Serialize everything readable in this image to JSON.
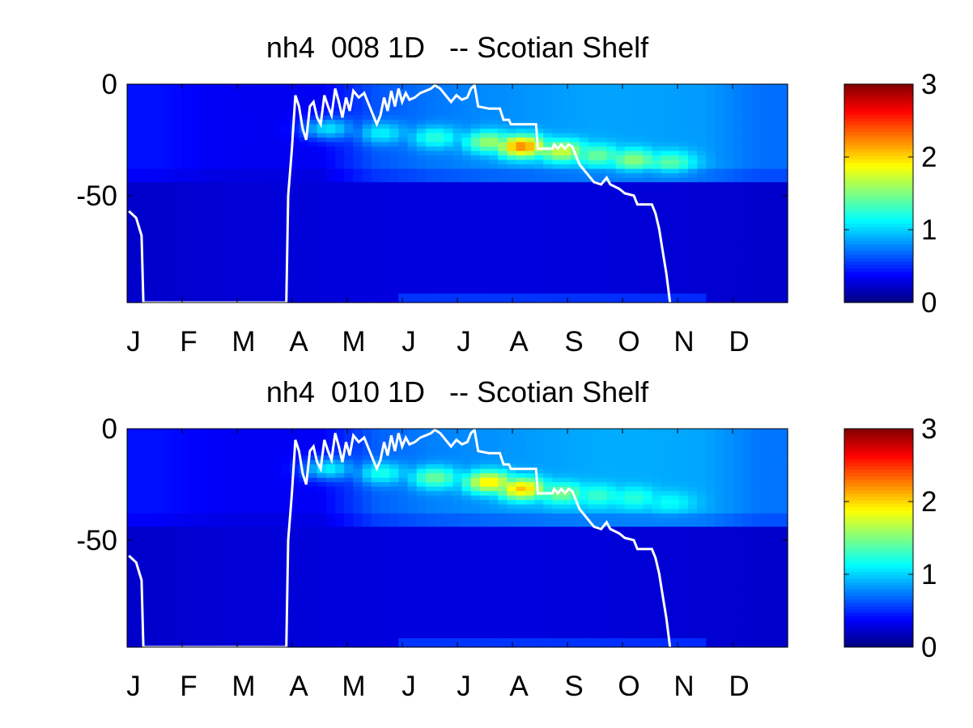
{
  "chart_data": [
    {
      "type": "heatmap",
      "title": "nh4  008 1D   -- Scotian Shelf",
      "xlabel": "",
      "ylabel": "",
      "x_tick_labels": [
        "J",
        "F",
        "M",
        "A",
        "M",
        "J",
        "J",
        "A",
        "S",
        "O",
        "N",
        "D"
      ],
      "y_tick_labels": [
        "0",
        "-50"
      ],
      "y_ticks": [
        0,
        -50
      ],
      "ylim": [
        -98,
        0
      ],
      "colorbar": {
        "colormap": "jet",
        "range": [
          0,
          3
        ],
        "tick_labels": [
          "0",
          "1",
          "2",
          "3"
        ]
      },
      "surface_layer": {
        "months": [
          1,
          2,
          3,
          4,
          5,
          6,
          7,
          8,
          9,
          10,
          11,
          12
        ],
        "values": [
          0.42,
          0.35,
          0.33,
          0.34,
          0.62,
          0.72,
          0.78,
          0.82,
          0.86,
          0.85,
          0.83,
          0.7
        ]
      },
      "subsurface_maximum": {
        "points": [
          {
            "day": 110,
            "depth": -20,
            "value": 1.05
          },
          {
            "day": 140,
            "depth": -22,
            "value": 1.1
          },
          {
            "day": 170,
            "depth": -24,
            "value": 1.25
          },
          {
            "day": 200,
            "depth": -26,
            "value": 1.6
          },
          {
            "day": 218,
            "depth": -28,
            "value": 2.25
          },
          {
            "day": 240,
            "depth": -30,
            "value": 1.75
          },
          {
            "day": 260,
            "depth": -32,
            "value": 1.45
          },
          {
            "day": 280,
            "depth": -34,
            "value": 1.55
          },
          {
            "day": 300,
            "depth": -35,
            "value": 1.4
          },
          {
            "day": 318,
            "depth": -38,
            "value": 0.85
          }
        ]
      },
      "mixed_layer_depth_line": {
        "color": "#ffffff",
        "points": [
          [
            1,
            -57
          ],
          [
            5,
            -60
          ],
          [
            8,
            -68
          ],
          [
            9,
            -98
          ],
          [
            88,
            -98
          ],
          [
            89,
            -50
          ],
          [
            91,
            -30
          ],
          [
            93,
            -5
          ],
          [
            95,
            -10
          ],
          [
            97,
            -20
          ],
          [
            99,
            -25
          ],
          [
            101,
            -10
          ],
          [
            103,
            -8
          ],
          [
            105,
            -15
          ],
          [
            107,
            -18
          ],
          [
            109,
            -5
          ],
          [
            111,
            -10
          ],
          [
            113,
            -14
          ],
          [
            115,
            -2
          ],
          [
            117,
            -8
          ],
          [
            119,
            -15
          ],
          [
            121,
            -6
          ],
          [
            123,
            -12
          ],
          [
            125,
            -3
          ],
          [
            128,
            -6
          ],
          [
            131,
            -4
          ],
          [
            134,
            -10
          ],
          [
            136,
            -14
          ],
          [
            138,
            -18
          ],
          [
            140,
            -14
          ],
          [
            142,
            -6
          ],
          [
            144,
            -12
          ],
          [
            146,
            -3
          ],
          [
            148,
            -10
          ],
          [
            150,
            -2
          ],
          [
            152,
            -8
          ],
          [
            154,
            -4
          ],
          [
            156,
            -7
          ],
          [
            159,
            -6
          ],
          [
            162,
            -4
          ],
          [
            165,
            -3
          ],
          [
            168,
            -2
          ],
          [
            170,
            -0.5
          ],
          [
            173,
            -2
          ],
          [
            176,
            -5
          ],
          [
            179,
            -8
          ],
          [
            182,
            -5
          ],
          [
            185,
            -7
          ],
          [
            188,
            -6
          ],
          [
            190,
            -2
          ],
          [
            192,
            -0.5
          ],
          [
            194,
            -10
          ],
          [
            200,
            -11
          ],
          [
            206,
            -11
          ],
          [
            208,
            -16
          ],
          [
            211,
            -16
          ],
          [
            212,
            -18
          ],
          [
            226,
            -18
          ],
          [
            227,
            -29
          ],
          [
            235,
            -29
          ],
          [
            236,
            -27
          ],
          [
            238,
            -29
          ],
          [
            240,
            -27
          ],
          [
            242,
            -29
          ],
          [
            244,
            -27
          ],
          [
            246,
            -28
          ],
          [
            248,
            -32
          ],
          [
            250,
            -36
          ],
          [
            254,
            -40
          ],
          [
            258,
            -44
          ],
          [
            262,
            -45
          ],
          [
            265,
            -42
          ],
          [
            267,
            -45
          ],
          [
            272,
            -47
          ],
          [
            275,
            -49
          ],
          [
            280,
            -50
          ],
          [
            282,
            -54
          ],
          [
            290,
            -54
          ],
          [
            292,
            -58
          ],
          [
            294,
            -65
          ],
          [
            296,
            -75
          ],
          [
            298,
            -85
          ],
          [
            300,
            -98
          ]
        ]
      }
    },
    {
      "type": "heatmap",
      "title": "nh4  010 1D   -- Scotian Shelf",
      "xlabel": "",
      "ylabel": "",
      "x_tick_labels": [
        "J",
        "F",
        "M",
        "A",
        "M",
        "J",
        "J",
        "A",
        "S",
        "O",
        "N",
        "D"
      ],
      "y_tick_labels": [
        "0",
        "-50"
      ],
      "y_ticks": [
        0,
        -50
      ],
      "ylim": [
        -98,
        0
      ],
      "colorbar": {
        "colormap": "jet",
        "range": [
          0,
          3
        ],
        "tick_labels": [
          "0",
          "1",
          "2",
          "3"
        ]
      },
      "surface_layer": {
        "months": [
          1,
          2,
          3,
          4,
          5,
          6,
          7,
          8,
          9,
          10,
          11,
          12
        ],
        "values": [
          0.42,
          0.36,
          0.34,
          0.35,
          0.65,
          0.75,
          0.8,
          0.84,
          0.88,
          0.88,
          0.86,
          0.72
        ]
      },
      "subsurface_maximum": {
        "points": [
          {
            "day": 110,
            "depth": -18,
            "value": 1.1
          },
          {
            "day": 140,
            "depth": -20,
            "value": 1.2
          },
          {
            "day": 170,
            "depth": -22,
            "value": 1.45
          },
          {
            "day": 200,
            "depth": -24,
            "value": 1.95
          },
          {
            "day": 218,
            "depth": -27,
            "value": 2.05
          },
          {
            "day": 240,
            "depth": -29,
            "value": 1.5
          },
          {
            "day": 260,
            "depth": -30,
            "value": 1.3
          },
          {
            "day": 280,
            "depth": -31,
            "value": 1.25
          },
          {
            "day": 300,
            "depth": -33,
            "value": 1.15
          },
          {
            "day": 318,
            "depth": -37,
            "value": 0.8
          }
        ]
      },
      "mixed_layer_depth_line": {
        "color": "#ffffff",
        "points": [
          [
            1,
            -57
          ],
          [
            5,
            -60
          ],
          [
            8,
            -68
          ],
          [
            9,
            -98
          ],
          [
            88,
            -98
          ],
          [
            89,
            -50
          ],
          [
            91,
            -30
          ],
          [
            93,
            -5
          ],
          [
            95,
            -10
          ],
          [
            97,
            -20
          ],
          [
            99,
            -25
          ],
          [
            101,
            -10
          ],
          [
            103,
            -8
          ],
          [
            105,
            -15
          ],
          [
            107,
            -18
          ],
          [
            109,
            -5
          ],
          [
            111,
            -10
          ],
          [
            113,
            -14
          ],
          [
            115,
            -2
          ],
          [
            117,
            -8
          ],
          [
            119,
            -15
          ],
          [
            121,
            -6
          ],
          [
            123,
            -12
          ],
          [
            125,
            -3
          ],
          [
            128,
            -6
          ],
          [
            131,
            -4
          ],
          [
            134,
            -10
          ],
          [
            136,
            -14
          ],
          [
            138,
            -18
          ],
          [
            140,
            -14
          ],
          [
            142,
            -6
          ],
          [
            144,
            -12
          ],
          [
            146,
            -3
          ],
          [
            148,
            -10
          ],
          [
            150,
            -2
          ],
          [
            152,
            -8
          ],
          [
            154,
            -4
          ],
          [
            156,
            -7
          ],
          [
            159,
            -6
          ],
          [
            162,
            -4
          ],
          [
            165,
            -3
          ],
          [
            168,
            -2
          ],
          [
            170,
            -0.5
          ],
          [
            173,
            -2
          ],
          [
            176,
            -5
          ],
          [
            179,
            -8
          ],
          [
            182,
            -5
          ],
          [
            185,
            -7
          ],
          [
            188,
            -6
          ],
          [
            190,
            -2
          ],
          [
            192,
            -0.5
          ],
          [
            194,
            -10
          ],
          [
            200,
            -11
          ],
          [
            206,
            -11
          ],
          [
            208,
            -16
          ],
          [
            211,
            -16
          ],
          [
            212,
            -18
          ],
          [
            226,
            -18
          ],
          [
            227,
            -29
          ],
          [
            235,
            -29
          ],
          [
            236,
            -27
          ],
          [
            238,
            -29
          ],
          [
            240,
            -27
          ],
          [
            242,
            -29
          ],
          [
            244,
            -27
          ],
          [
            246,
            -28
          ],
          [
            248,
            -32
          ],
          [
            250,
            -36
          ],
          [
            254,
            -40
          ],
          [
            258,
            -44
          ],
          [
            262,
            -45
          ],
          [
            265,
            -42
          ],
          [
            267,
            -45
          ],
          [
            272,
            -47
          ],
          [
            275,
            -49
          ],
          [
            280,
            -50
          ],
          [
            282,
            -54
          ],
          [
            290,
            -54
          ],
          [
            292,
            -58
          ],
          [
            294,
            -65
          ],
          [
            296,
            -75
          ],
          [
            298,
            -85
          ],
          [
            300,
            -98
          ]
        ]
      }
    }
  ]
}
